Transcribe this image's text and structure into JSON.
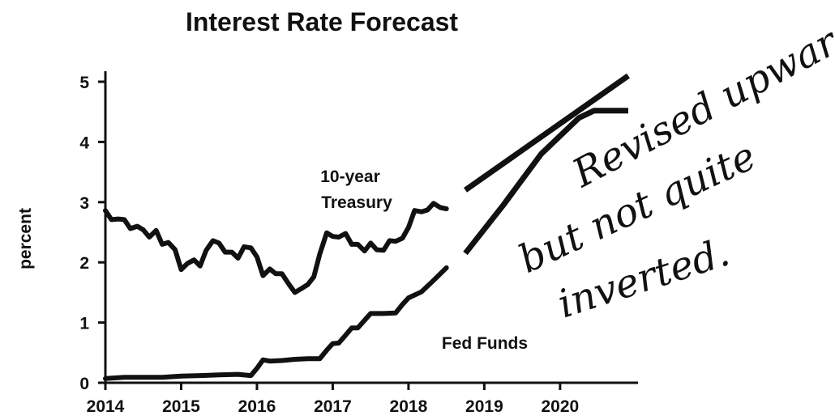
{
  "chart_data": {
    "type": "line",
    "title": "Interest Rate Forecast",
    "ylabel": "percent",
    "xlabel": "",
    "xlim": [
      2014.0,
      2020.9
    ],
    "ylim": [
      0,
      5.2
    ],
    "x_ticks": [
      "2014",
      "2015",
      "2016",
      "2017",
      "2018",
      "2019",
      "2020"
    ],
    "y_ticks": [
      "0",
      "1",
      "2",
      "3",
      "4",
      "5"
    ],
    "grid": false,
    "series": [
      {
        "name": "10-year Treasury",
        "actual": {
          "x": [
            2014.0,
            2014.08,
            2014.17,
            2014.25,
            2014.33,
            2014.42,
            2014.5,
            2014.58,
            2014.67,
            2014.75,
            2014.83,
            2014.92,
            2015.0,
            2015.08,
            2015.17,
            2015.25,
            2015.33,
            2015.42,
            2015.5,
            2015.58,
            2015.67,
            2015.75,
            2015.83,
            2015.92,
            2016.0,
            2016.08,
            2016.17,
            2016.25,
            2016.33,
            2016.42,
            2016.5,
            2016.58,
            2016.67,
            2016.75,
            2016.83,
            2016.92,
            2017.0,
            2017.08,
            2017.17,
            2017.25,
            2017.33,
            2017.42,
            2017.5,
            2017.58,
            2017.67,
            2017.75,
            2017.83,
            2017.92,
            2018.0,
            2018.08,
            2018.17,
            2018.25,
            2018.33,
            2018.42,
            2018.5
          ],
          "y": [
            2.86,
            2.71,
            2.72,
            2.71,
            2.56,
            2.6,
            2.54,
            2.42,
            2.53,
            2.3,
            2.33,
            2.21,
            1.88,
            1.98,
            2.04,
            1.94,
            2.2,
            2.36,
            2.32,
            2.17,
            2.17,
            2.07,
            2.26,
            2.24,
            2.09,
            1.78,
            1.89,
            1.81,
            1.81,
            1.64,
            1.5,
            1.56,
            1.63,
            1.76,
            2.14,
            2.49,
            2.43,
            2.42,
            2.48,
            2.3,
            2.3,
            2.19,
            2.32,
            2.21,
            2.2,
            2.36,
            2.35,
            2.4,
            2.58,
            2.86,
            2.84,
            2.87,
            2.98,
            2.91,
            2.89
          ]
        },
        "forecast": {
          "x": [
            2018.75,
            2020.9
          ],
          "y": [
            3.2,
            5.1
          ]
        }
      },
      {
        "name": "Fed Funds",
        "actual": {
          "x": [
            2014.0,
            2014.25,
            2014.5,
            2014.75,
            2015.0,
            2015.25,
            2015.5,
            2015.75,
            2015.92,
            2016.0,
            2016.08,
            2016.17,
            2016.33,
            2016.5,
            2016.67,
            2016.83,
            2016.92,
            2017.0,
            2017.08,
            2017.17,
            2017.25,
            2017.33,
            2017.5,
            2017.67,
            2017.83,
            2017.92,
            2018.0,
            2018.17,
            2018.33,
            2018.5
          ],
          "y": [
            0.07,
            0.09,
            0.09,
            0.09,
            0.11,
            0.12,
            0.13,
            0.14,
            0.12,
            0.24,
            0.38,
            0.36,
            0.37,
            0.39,
            0.4,
            0.4,
            0.54,
            0.65,
            0.66,
            0.79,
            0.91,
            0.91,
            1.15,
            1.15,
            1.16,
            1.3,
            1.41,
            1.51,
            1.7,
            1.91
          ]
        },
        "forecast": {
          "x": [
            2018.75,
            2019.25,
            2019.75,
            2020.25,
            2020.45,
            2020.9
          ],
          "y": [
            2.15,
            2.95,
            3.8,
            4.4,
            4.52,
            4.52
          ]
        }
      }
    ],
    "annotations": [
      "Revised upward,",
      "but not quite",
      "inverted."
    ]
  }
}
